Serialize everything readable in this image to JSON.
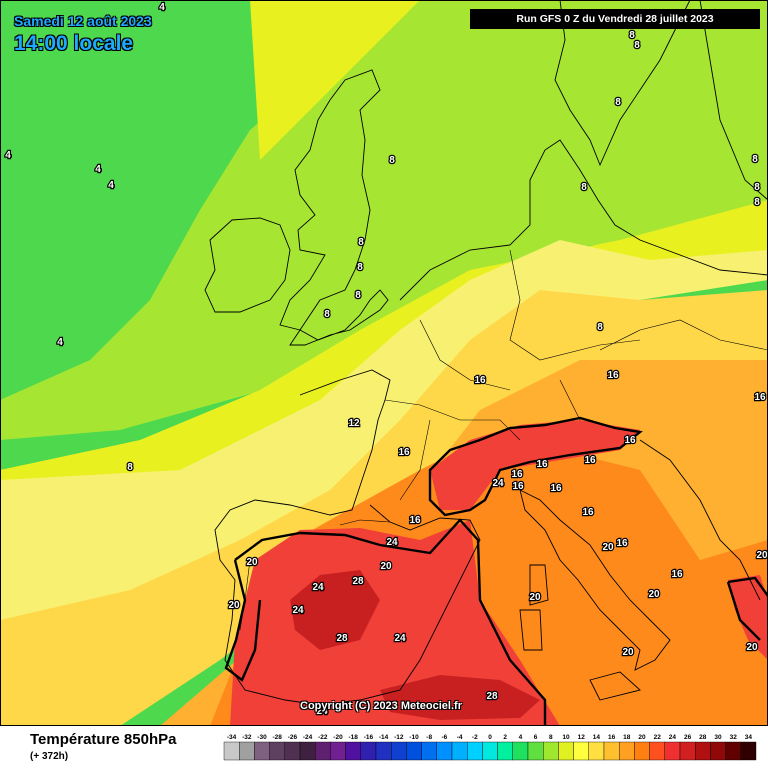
{
  "header": {
    "date_title": "Samedi 12 août 2023",
    "time_title": "14:00 locale",
    "run_info": "Run GFS 0 Z du Vendredi 28 juillet 2023"
  },
  "copyright": "Copyright (C) 2023 Meteociel.fr",
  "footer": {
    "parameter": "Température 850hPa",
    "lead_time": "(+ 372h)"
  },
  "legend": {
    "ticks": [
      "-34",
      "-32",
      "-30",
      "-28",
      "-26",
      "-24",
      "-22",
      "-20",
      "-18",
      "-16",
      "-14",
      "-12",
      "-10",
      "-8",
      "-6",
      "-4",
      "-2",
      "0",
      "2",
      "4",
      "6",
      "8",
      "10",
      "12",
      "14",
      "16",
      "18",
      "20",
      "22",
      "24",
      "26",
      "28",
      "30",
      "32",
      "34"
    ],
    "colors": [
      "#c8c8c8",
      "#a0a0a0",
      "#806080",
      "#604060",
      "#503050",
      "#402040",
      "#602070",
      "#702090",
      "#5010a0",
      "#3020b0",
      "#2030c0",
      "#1040d0",
      "#0050e0",
      "#0070f0",
      "#0090ff",
      "#00b0ff",
      "#00d0ff",
      "#00e8e0",
      "#00f0a0",
      "#20e060",
      "#60e040",
      "#a0e830",
      "#e0f020",
      "#ffff40",
      "#ffe040",
      "#ffc030",
      "#ffa020",
      "#ff8010",
      "#ff5020",
      "#f03030",
      "#d02020",
      "#b01010",
      "#900808",
      "#600000",
      "#300000"
    ]
  },
  "isotherm_labels": [
    {
      "text": "4"
    },
    {
      "text": "4"
    },
    {
      "text": "4"
    },
    {
      "text": "4"
    },
    {
      "text": "4"
    },
    {
      "text": "8"
    },
    {
      "text": "8"
    },
    {
      "text": "8"
    },
    {
      "text": "8"
    },
    {
      "text": "8"
    },
    {
      "text": "8"
    },
    {
      "text": "8"
    },
    {
      "text": "8"
    },
    {
      "text": "8"
    },
    {
      "text": "8"
    },
    {
      "text": "8"
    },
    {
      "text": "8"
    },
    {
      "text": "8"
    },
    {
      "text": "8"
    },
    {
      "text": "12"
    },
    {
      "text": "16"
    },
    {
      "text": "16"
    },
    {
      "text": "16"
    },
    {
      "text": "16"
    },
    {
      "text": "16"
    },
    {
      "text": "16"
    },
    {
      "text": "16"
    },
    {
      "text": "16"
    },
    {
      "text": "16"
    },
    {
      "text": "16"
    },
    {
      "text": "16"
    },
    {
      "text": "16"
    },
    {
      "text": "16"
    },
    {
      "text": "16"
    },
    {
      "text": "20"
    },
    {
      "text": "20"
    },
    {
      "text": "20"
    },
    {
      "text": "20"
    },
    {
      "text": "20"
    },
    {
      "text": "20"
    },
    {
      "text": "20"
    },
    {
      "text": "20"
    },
    {
      "text": "20"
    },
    {
      "text": "24"
    },
    {
      "text": "24"
    },
    {
      "text": "24"
    },
    {
      "text": "24"
    },
    {
      "text": "24"
    },
    {
      "text": "24"
    },
    {
      "text": "28"
    },
    {
      "text": "28"
    },
    {
      "text": "28"
    }
  ]
}
